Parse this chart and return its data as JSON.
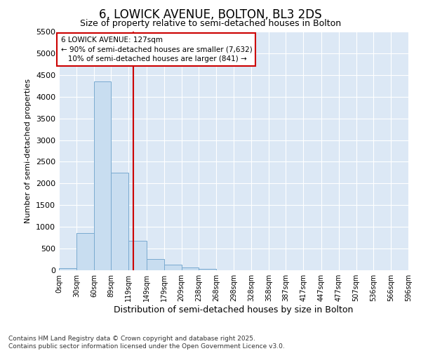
{
  "title": "6, LOWICK AVENUE, BOLTON, BL3 2DS",
  "subtitle": "Size of property relative to semi-detached houses in Bolton",
  "xlabel": "Distribution of semi-detached houses by size in Bolton",
  "ylabel": "Number of semi-detached properties",
  "bar_color": "#c8ddf0",
  "bar_edge_color": "#7aaad0",
  "plot_bg_color": "#dce8f5",
  "fig_bg_color": "#ffffff",
  "grid_color": "#ffffff",
  "bins": [
    0,
    30,
    60,
    89,
    119,
    149,
    179,
    209,
    238,
    268,
    298,
    328,
    358,
    387,
    417,
    447,
    477,
    507,
    536,
    566,
    596
  ],
  "bin_labels": [
    "0sqm",
    "30sqm",
    "60sqm",
    "89sqm",
    "119sqm",
    "149sqm",
    "179sqm",
    "209sqm",
    "238sqm",
    "268sqm",
    "298sqm",
    "328sqm",
    "358sqm",
    "387sqm",
    "417sqm",
    "447sqm",
    "477sqm",
    "507sqm",
    "536sqm",
    "566sqm",
    "596sqm"
  ],
  "values": [
    50,
    850,
    4350,
    2250,
    680,
    260,
    130,
    70,
    40,
    0,
    0,
    0,
    0,
    0,
    0,
    0,
    0,
    0,
    0,
    0
  ],
  "property_size": 127,
  "red_line_color": "#cc0000",
  "annotation_line1": "6 LOWICK AVENUE: 127sqm",
  "annotation_line2": "← 90% of semi-detached houses are smaller (7,632)",
  "annotation_line3": "   10% of semi-detached houses are larger (841) →",
  "ylim_max": 5500,
  "yticks": [
    0,
    500,
    1000,
    1500,
    2000,
    2500,
    3000,
    3500,
    4000,
    4500,
    5000,
    5500
  ],
  "footer_text": "Contains HM Land Registry data © Crown copyright and database right 2025.\nContains public sector information licensed under the Open Government Licence v3.0."
}
